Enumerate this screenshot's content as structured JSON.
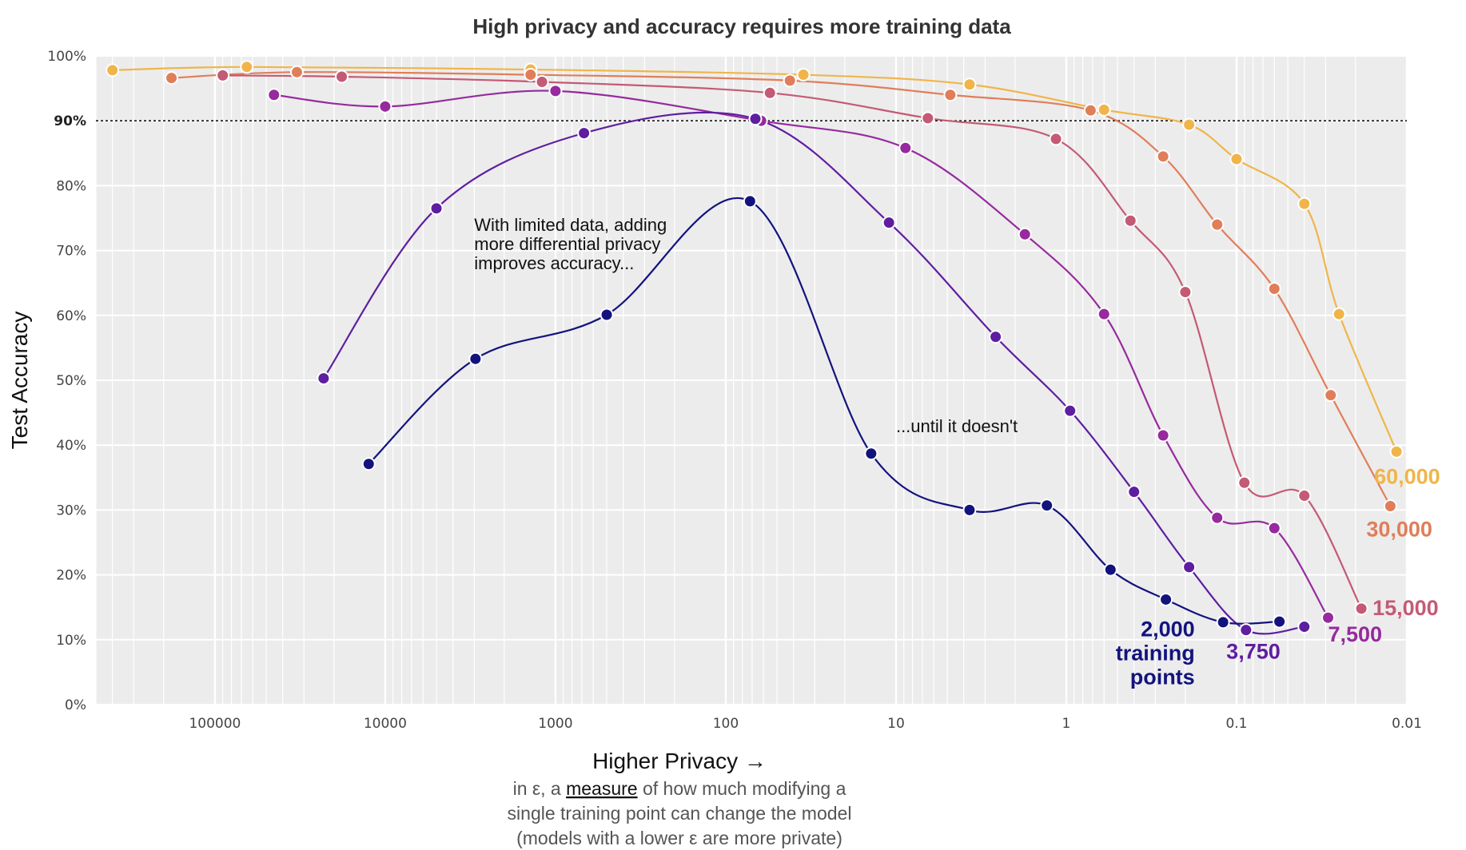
{
  "chart_data": {
    "type": "line",
    "title": "High privacy and accuracy requires more training data",
    "xlabel": "Higher Privacy →",
    "xlabel_subtitle": [
      "in ε, a measure of how much modifying a",
      "single training point can change the model",
      "(models with a lower ε are more private)"
    ],
    "xlabel_subtitle_link_word": "measure",
    "ylabel": "Test Accuracy",
    "x_scale": "log",
    "x_reversed": true,
    "xlim": [
      500000,
      0.01
    ],
    "ylim": [
      0,
      100
    ],
    "x_ticks": [
      "100000",
      "10000",
      "1000",
      "100",
      "10",
      "1",
      "0.1",
      "0.01"
    ],
    "x_tick_values": [
      100000,
      10000,
      1000,
      100,
      10,
      1,
      0.1,
      0.01
    ],
    "y_ticks": [
      "0%",
      "10%",
      "20%",
      "30%",
      "40%",
      "50%",
      "60%",
      "70%",
      "80%",
      "90%",
      "100%"
    ],
    "y_tick_values": [
      0,
      10,
      20,
      30,
      40,
      50,
      60,
      70,
      80,
      90,
      100
    ],
    "grid": true,
    "reference_line": {
      "y": 90,
      "style": "dotted"
    },
    "annotations": [
      {
        "lines": [
          "With limited data, adding",
          "more differential privacy",
          "improves accuracy..."
        ],
        "x": 3000,
        "y": 73
      },
      {
        "lines": [
          "...until it doesn't"
        ],
        "x": 10,
        "y": 42
      }
    ],
    "series": [
      {
        "name": "60,000",
        "label_lines": [
          "60,000"
        ],
        "color": "#f0b54a",
        "x": [
          400000,
          65000,
          1400,
          35,
          3.7,
          0.6,
          0.19,
          0.1,
          0.04,
          0.025,
          0.0115
        ],
        "y": [
          97.8,
          98.3,
          97.9,
          97.1,
          95.6,
          91.7,
          89.4,
          84.1,
          77.2,
          60.2,
          39.0
        ]
      },
      {
        "name": "30,000",
        "label_lines": [
          "30,000"
        ],
        "color": "#e07e5a",
        "x": [
          180000,
          33000,
          1400,
          42,
          4.8,
          0.72,
          0.27,
          0.13,
          0.06,
          0.028,
          0.0125
        ],
        "y": [
          96.6,
          97.5,
          97.1,
          96.2,
          94.0,
          91.6,
          84.5,
          74.0,
          64.1,
          47.7,
          30.6
        ]
      },
      {
        "name": "15,000",
        "label_lines": [
          "15,000"
        ],
        "color": "#c45a74",
        "x": [
          90000,
          18000,
          1200,
          55,
          6.5,
          1.15,
          0.42,
          0.2,
          0.09,
          0.04,
          0.0185
        ],
        "y": [
          97.0,
          96.8,
          96.0,
          94.3,
          90.4,
          87.2,
          74.6,
          63.6,
          34.2,
          32.2,
          14.8
        ]
      },
      {
        "name": "7,500",
        "label_lines": [
          "7,500"
        ],
        "color": "#962a9e",
        "x": [
          45000,
          10000,
          1000,
          62,
          8.8,
          1.75,
          0.6,
          0.27,
          0.13,
          0.06,
          0.029
        ],
        "y": [
          94.0,
          92.2,
          94.6,
          90.0,
          85.8,
          72.5,
          60.2,
          41.5,
          28.8,
          27.2,
          13.4
        ]
      },
      {
        "name": "3,750",
        "label_lines": [
          "3,750"
        ],
        "color": "#5e1ea0",
        "x": [
          23000,
          5000,
          680,
          67,
          11,
          2.6,
          0.95,
          0.4,
          0.19,
          0.088,
          0.04
        ],
        "y": [
          50.3,
          76.5,
          88.1,
          90.3,
          74.3,
          56.7,
          45.3,
          32.8,
          21.2,
          11.5,
          12.0
        ]
      },
      {
        "name": "2,000 training points",
        "label_lines": [
          "2,000",
          "training",
          "points"
        ],
        "color": "#13137e",
        "x": [
          12500,
          2950,
          500,
          72,
          14,
          3.7,
          1.3,
          0.55,
          0.26,
          0.12,
          0.056
        ],
        "y": [
          37.1,
          53.3,
          60.1,
          77.6,
          38.7,
          30.0,
          30.7,
          20.8,
          16.2,
          12.7,
          12.8
        ]
      }
    ]
  }
}
